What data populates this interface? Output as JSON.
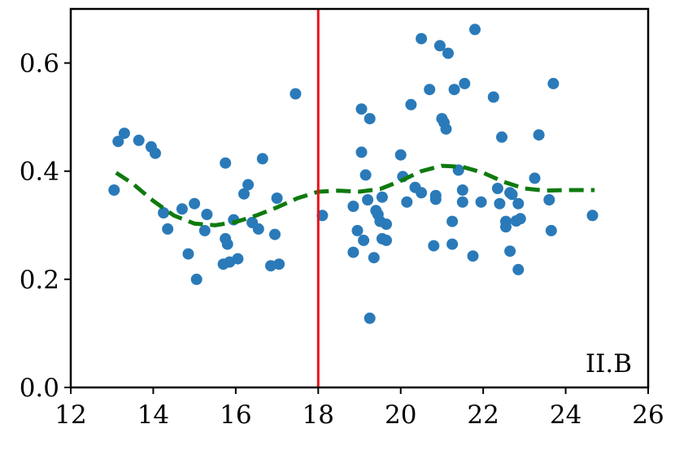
{
  "chart_data": {
    "type": "scatter",
    "title": "",
    "xlabel": "",
    "ylabel": "",
    "xlim": [
      12,
      26
    ],
    "ylim": [
      0.0,
      0.7
    ],
    "grid": false,
    "xticks": [
      "12",
      "14",
      "16",
      "18",
      "20",
      "22",
      "24",
      "26"
    ],
    "yticks": [
      "0.0",
      "0.2",
      "0.4",
      "0.6"
    ],
    "panel_label": "II.B",
    "vline": {
      "x": 18,
      "color": "#e8111a"
    },
    "scatter_color": "#2a7ab9",
    "trend_color": "#0e7a0e",
    "points": [
      [
        13.05,
        0.365
      ],
      [
        13.15,
        0.455
      ],
      [
        13.3,
        0.47
      ],
      [
        13.65,
        0.457
      ],
      [
        13.95,
        0.445
      ],
      [
        14.05,
        0.433
      ],
      [
        14.25,
        0.323
      ],
      [
        14.35,
        0.293
      ],
      [
        14.7,
        0.33
      ],
      [
        14.85,
        0.247
      ],
      [
        15.0,
        0.34
      ],
      [
        15.05,
        0.2
      ],
      [
        15.25,
        0.29
      ],
      [
        15.3,
        0.32
      ],
      [
        15.7,
        0.228
      ],
      [
        15.75,
        0.415
      ],
      [
        15.75,
        0.275
      ],
      [
        15.8,
        0.265
      ],
      [
        15.85,
        0.232
      ],
      [
        15.95,
        0.31
      ],
      [
        16.05,
        0.238
      ],
      [
        16.2,
        0.358
      ],
      [
        16.3,
        0.375
      ],
      [
        16.4,
        0.305
      ],
      [
        16.55,
        0.293
      ],
      [
        16.65,
        0.423
      ],
      [
        16.85,
        0.225
      ],
      [
        16.95,
        0.283
      ],
      [
        17.0,
        0.35
      ],
      [
        17.05,
        0.228
      ],
      [
        17.45,
        0.543
      ],
      [
        18.1,
        0.318
      ],
      [
        18.85,
        0.25
      ],
      [
        18.85,
        0.335
      ],
      [
        18.95,
        0.29
      ],
      [
        19.05,
        0.435
      ],
      [
        19.05,
        0.515
      ],
      [
        19.1,
        0.272
      ],
      [
        19.15,
        0.393
      ],
      [
        19.2,
        0.347
      ],
      [
        19.25,
        0.497
      ],
      [
        19.25,
        0.128
      ],
      [
        19.35,
        0.24
      ],
      [
        19.4,
        0.327
      ],
      [
        19.45,
        0.32
      ],
      [
        19.5,
        0.307
      ],
      [
        19.55,
        0.352
      ],
      [
        19.55,
        0.275
      ],
      [
        19.65,
        0.302
      ],
      [
        19.65,
        0.272
      ],
      [
        20.0,
        0.43
      ],
      [
        20.05,
        0.39
      ],
      [
        20.15,
        0.343
      ],
      [
        20.25,
        0.523
      ],
      [
        20.35,
        0.37
      ],
      [
        20.5,
        0.645
      ],
      [
        20.5,
        0.36
      ],
      [
        20.7,
        0.551
      ],
      [
        20.8,
        0.262
      ],
      [
        20.85,
        0.355
      ],
      [
        20.85,
        0.348
      ],
      [
        20.95,
        0.632
      ],
      [
        21.0,
        0.497
      ],
      [
        21.05,
        0.49
      ],
      [
        21.1,
        0.478
      ],
      [
        21.15,
        0.618
      ],
      [
        21.25,
        0.307
      ],
      [
        21.25,
        0.265
      ],
      [
        21.3,
        0.551
      ],
      [
        21.4,
        0.402
      ],
      [
        21.5,
        0.365
      ],
      [
        21.5,
        0.343
      ],
      [
        21.55,
        0.562
      ],
      [
        21.75,
        0.243
      ],
      [
        21.8,
        0.662
      ],
      [
        21.95,
        0.343
      ],
      [
        22.25,
        0.537
      ],
      [
        22.35,
        0.368
      ],
      [
        22.4,
        0.34
      ],
      [
        22.45,
        0.463
      ],
      [
        22.55,
        0.297
      ],
      [
        22.55,
        0.307
      ],
      [
        22.65,
        0.36
      ],
      [
        22.65,
        0.252
      ],
      [
        22.7,
        0.357
      ],
      [
        22.8,
        0.308
      ],
      [
        22.85,
        0.218
      ],
      [
        22.85,
        0.34
      ],
      [
        22.9,
        0.312
      ],
      [
        23.25,
        0.387
      ],
      [
        23.35,
        0.467
      ],
      [
        23.6,
        0.347
      ],
      [
        23.65,
        0.29
      ],
      [
        23.7,
        0.562
      ],
      [
        24.65,
        0.318
      ]
    ],
    "trend": [
      [
        13.1,
        0.397
      ],
      [
        13.5,
        0.377
      ],
      [
        14.0,
        0.345
      ],
      [
        14.5,
        0.318
      ],
      [
        15.0,
        0.303
      ],
      [
        15.5,
        0.3
      ],
      [
        16.0,
        0.306
      ],
      [
        16.5,
        0.318
      ],
      [
        17.0,
        0.333
      ],
      [
        17.5,
        0.35
      ],
      [
        18.0,
        0.362
      ],
      [
        18.5,
        0.364
      ],
      [
        19.0,
        0.362
      ],
      [
        19.5,
        0.367
      ],
      [
        20.0,
        0.382
      ],
      [
        20.5,
        0.4
      ],
      [
        21.0,
        0.41
      ],
      [
        21.5,
        0.408
      ],
      [
        22.0,
        0.397
      ],
      [
        22.5,
        0.38
      ],
      [
        23.0,
        0.368
      ],
      [
        23.5,
        0.364
      ],
      [
        24.0,
        0.365
      ],
      [
        24.7,
        0.365
      ]
    ]
  }
}
